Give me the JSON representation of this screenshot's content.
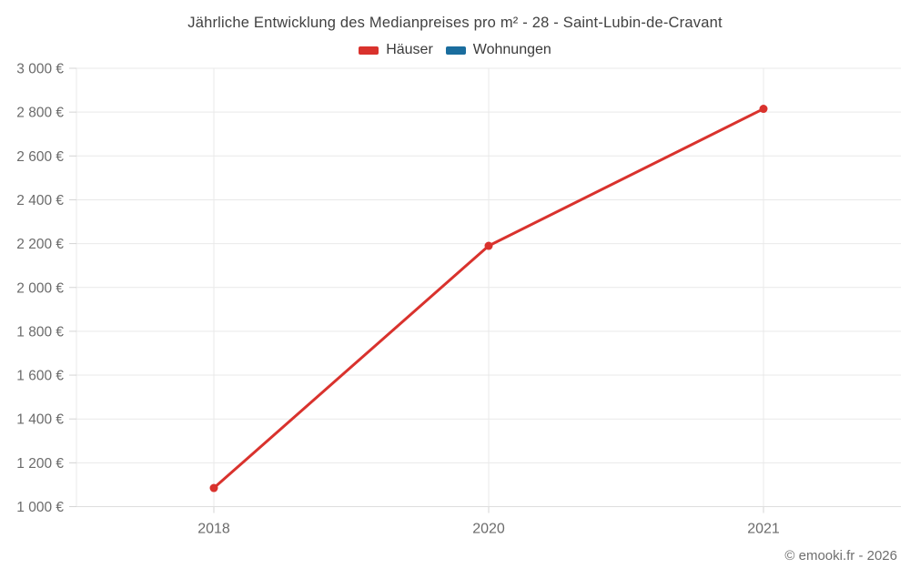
{
  "title": "Jährliche Entwicklung des Medianpreises pro m² - 28 - Saint-Lubin-de-Cravant",
  "legend": [
    {
      "label": "Häuser",
      "color": "#d9322d"
    },
    {
      "label": "Wohnungen",
      "color": "#1a6d9e"
    }
  ],
  "footer": "© emooki.fr - 2026",
  "chart_data": {
    "type": "line",
    "title": "Jährliche Entwicklung des Medianpreises pro m² - 28 - Saint-Lubin-de-Cravant",
    "categories": [
      "2018",
      "2020",
      "2021"
    ],
    "series": [
      {
        "name": "Häuser",
        "color": "#d9322d",
        "values": [
          1085,
          2190,
          2815
        ]
      },
      {
        "name": "Wohnungen",
        "color": "#1a6d9e",
        "values": []
      }
    ],
    "xlabel": "",
    "ylabel": "",
    "ylim": [
      1000,
      3000
    ],
    "y_tick_step": 200,
    "y_tick_labels": [
      "1 000 €",
      "1 200 €",
      "1 400 €",
      "1 600 €",
      "1 800 €",
      "2 000 €",
      "2 200 €",
      "2 400 €",
      "2 600 €",
      "2 800 €",
      "3 000 €"
    ],
    "grid": true,
    "legend_position": "top"
  }
}
